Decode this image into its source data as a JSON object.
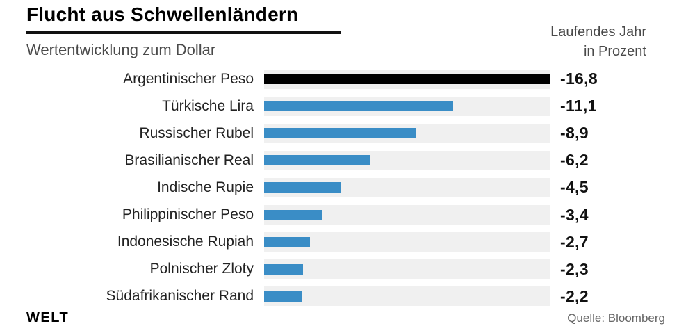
{
  "header": {
    "title": "Flucht aus Schwellenländern",
    "subtitle": "Wertentwicklung zum Dollar",
    "right_label_line1": "Laufendes Jahr",
    "right_label_line2": "in Prozent"
  },
  "footer": {
    "logo": "WELT",
    "source": "Quelle: Bloomberg"
  },
  "colors": {
    "bar": "#3a8dc6",
    "highlight_bar": "#000000",
    "track": "#f0f0f0",
    "title_text": "#000000",
    "secondary_text": "#4a4a4a",
    "value_text": "#111111",
    "source_text": "#666666"
  },
  "chart_data": {
    "type": "bar",
    "orientation": "horizontal",
    "title": "Flucht aus Schwellenländern",
    "subtitle": "Wertentwicklung zum Dollar",
    "unit_label": "Laufendes Jahr in Prozent",
    "xlim": [
      -16.8,
      0
    ],
    "grid": false,
    "legend": false,
    "categories": [
      "Argentinischer Peso",
      "Türkische Lira",
      "Russischer Rubel",
      "Brasilianischer Real",
      "Indische Rupie",
      "Philippinischer Peso",
      "Indonesische Rupiah",
      "Polnischer Zloty",
      "Südafrikanischer Rand"
    ],
    "values": [
      -16.8,
      -11.1,
      -8.9,
      -6.2,
      -4.5,
      -3.4,
      -2.7,
      -2.3,
      -2.2
    ],
    "value_labels": [
      "-16,8",
      "-11,1",
      "-8,9",
      "-6,2",
      "-4,5",
      "-3,4",
      "-2,7",
      "-2,3",
      "-2,2"
    ],
    "highlight_index": 0,
    "source": "Quelle: Bloomberg"
  }
}
